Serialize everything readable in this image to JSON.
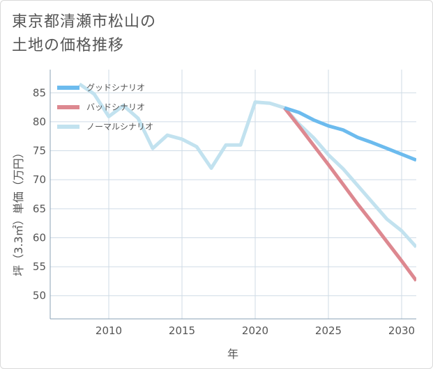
{
  "title_lines": [
    "東京都清瀬市松山の",
    "土地の価格推移"
  ],
  "chart_data": {
    "type": "line",
    "title": "東京都清瀬市松山の土地の価格推移",
    "xlabel": "年",
    "ylabel": "坪（3.3㎡）単価（万円）",
    "xlim": [
      2006,
      2031
    ],
    "ylim": [
      46,
      89
    ],
    "x_ticks": [
      2010,
      2015,
      2020,
      2025,
      2030
    ],
    "y_ticks": [
      50,
      55,
      60,
      65,
      70,
      75,
      80,
      85
    ],
    "grid": true,
    "legend_position": "top-left",
    "series": [
      {
        "name": "グッドシナリオ",
        "color": "#6cbbee",
        "x": [
          2022,
          2023,
          2024,
          2025,
          2026,
          2027,
          2028,
          2029,
          2030,
          2031
        ],
        "values": [
          82.4,
          81.6,
          80.3,
          79.3,
          78.6,
          77.3,
          76.4,
          75.4,
          74.4,
          73.4
        ]
      },
      {
        "name": "バッドシナリオ",
        "color": "#dd8890",
        "x": [
          2022,
          2023,
          2024,
          2025,
          2026,
          2027,
          2028,
          2029,
          2030,
          2031
        ],
        "values": [
          82.4,
          79.2,
          75.9,
          72.6,
          69.2,
          65.8,
          62.6,
          59.3,
          56.0,
          52.6
        ]
      },
      {
        "name": "ノーマルシナリオ",
        "color": "#c2e2ef",
        "x": [
          2008,
          2009,
          2010,
          2011,
          2012,
          2013,
          2014,
          2015,
          2016,
          2017,
          2018,
          2019,
          2020,
          2021,
          2022,
          2023,
          2024,
          2025,
          2026,
          2027,
          2028,
          2029,
          2030,
          2031
        ],
        "values": [
          86.5,
          84.8,
          80.9,
          82.8,
          80.6,
          75.4,
          77.7,
          77.0,
          75.7,
          72.0,
          76.0,
          76.0,
          83.4,
          83.2,
          82.4,
          79.6,
          77.2,
          74.3,
          71.9,
          69.0,
          66.1,
          63.2,
          61.2,
          58.4
        ]
      }
    ]
  }
}
